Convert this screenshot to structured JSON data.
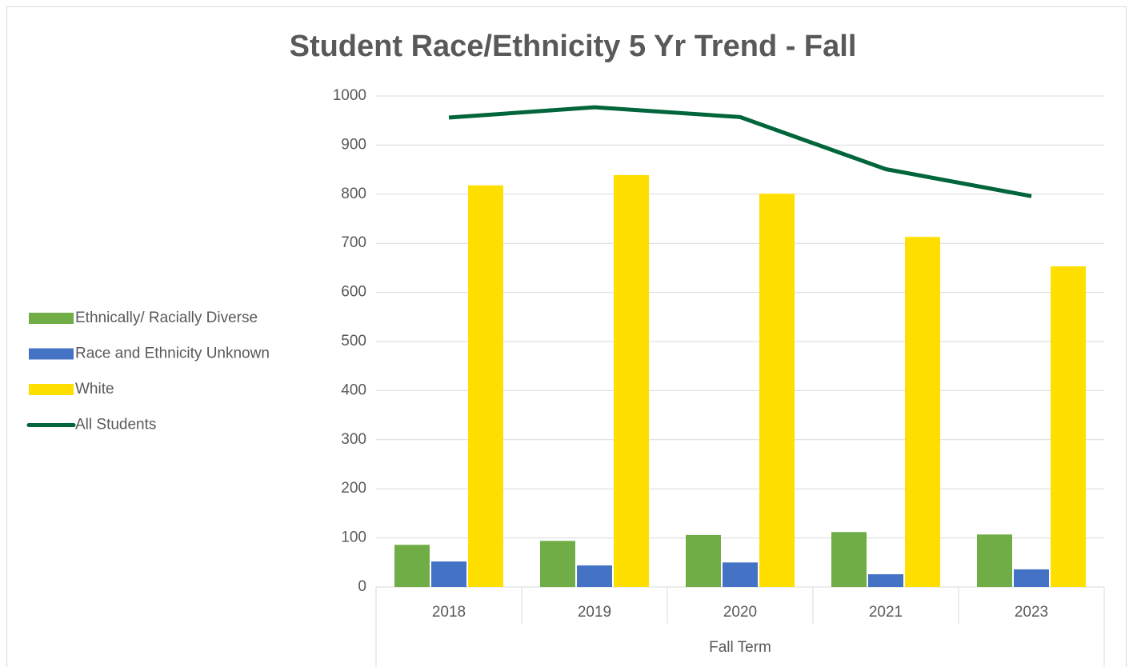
{
  "chart_data": {
    "type": "bar",
    "title": "Student Race/Ethnicity 5 Yr Trend - Fall",
    "x_label": "Fall Term",
    "categories": [
      "2018",
      "2019",
      "2020",
      "2021",
      "2023"
    ],
    "series": [
      {
        "name": "Ethnically/ Racially Diverse",
        "color": "#70ad47",
        "kind": "bar",
        "values": [
          86,
          94,
          106,
          112,
          107
        ]
      },
      {
        "name": "Race and Ethnicity Unknown",
        "color": "#4472c4",
        "kind": "bar",
        "values": [
          52,
          44,
          50,
          26,
          36
        ]
      },
      {
        "name": "White",
        "color": "#ffdf00",
        "kind": "bar",
        "values": [
          818,
          839,
          801,
          713,
          653
        ]
      },
      {
        "name": "All Students",
        "color": "#00653a",
        "kind": "line",
        "values": [
          956,
          977,
          957,
          851,
          796
        ]
      }
    ],
    "ylim": [
      0,
      1000
    ],
    "yticks": [
      0,
      100,
      200,
      300,
      400,
      500,
      600,
      700,
      800,
      900,
      1000
    ],
    "grid": true,
    "legend": "left"
  }
}
